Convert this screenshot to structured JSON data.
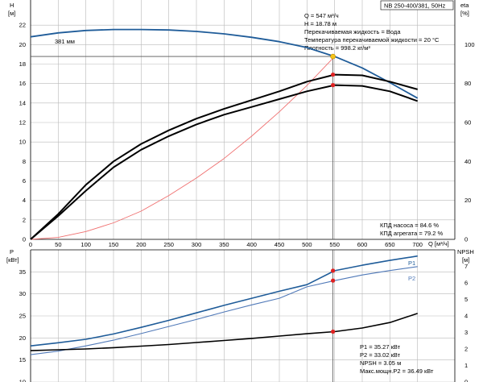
{
  "chart_data": [
    {
      "type": "line",
      "title_box": "NB 250-400/381, 50Hz",
      "x": {
        "unit": "Q [м³/ч]",
        "range": [
          0,
          750
        ],
        "ticks": [
          0,
          50,
          100,
          150,
          200,
          250,
          300,
          350,
          400,
          450,
          500,
          550,
          600,
          650,
          700
        ]
      },
      "y_left": {
        "label": "H",
        "unit": "[м]",
        "range": [
          0,
          24
        ],
        "ticks": [
          0,
          2,
          4,
          6,
          8,
          10,
          12,
          14,
          16,
          18,
          20,
          22
        ]
      },
      "y_right": {
        "label": "eta",
        "unit": "[%]",
        "range": [
          0,
          120
        ],
        "ticks": [
          0,
          20,
          40,
          60,
          80,
          100
        ]
      },
      "grid": true,
      "series": [
        {
          "name": "381 мм",
          "axis": "left",
          "color": "#1f5c99",
          "x": [
            0,
            50,
            100,
            150,
            200,
            250,
            300,
            350,
            400,
            450,
            500,
            550,
            600,
            650,
            700
          ],
          "y": [
            20.8,
            21.2,
            21.45,
            21.55,
            21.55,
            21.5,
            21.35,
            21.1,
            20.75,
            20.3,
            19.7,
            18.78,
            17.6,
            16.1,
            14.5
          ]
        },
        {
          "axis": "left",
          "color": "#f07070",
          "x": [
            0,
            50,
            100,
            150,
            200,
            250,
            300,
            350,
            400,
            450,
            500,
            550
          ],
          "y": [
            0,
            0.2,
            0.8,
            1.7,
            2.9,
            4.5,
            6.3,
            8.3,
            10.6,
            13.1,
            15.8,
            18.78
          ]
        },
        {
          "name": "КПД насоса",
          "axis": "right",
          "color": "#000000",
          "x": [
            0,
            50,
            100,
            150,
            200,
            250,
            300,
            350,
            400,
            450,
            500,
            550,
            600,
            650,
            700
          ],
          "y": [
            0,
            13,
            28,
            40,
            49,
            56,
            62,
            67,
            71.5,
            76,
            81,
            84.6,
            84.2,
            81,
            77
          ]
        },
        {
          "name": "КПД агрегата",
          "axis": "right",
          "color": "#000000",
          "x": [
            0,
            50,
            100,
            150,
            200,
            250,
            300,
            350,
            400,
            450,
            500,
            550,
            600,
            650,
            700
          ],
          "y": [
            0,
            12,
            25,
            37,
            46,
            53,
            59,
            64,
            68,
            72,
            76,
            79.2,
            78.8,
            76,
            71
          ]
        }
      ],
      "duty_point": {
        "x": 547,
        "H": 18.78,
        "eta_pump": 84.6,
        "eta_unit": 79.2
      },
      "annotations": {
        "top_lines": [
          "Q = 547 м³/ч",
          "H = 18.78 м",
          "Перекачиваемая жидкость = Вода",
          "Температура перекачиваемой жидкости = 20 °C",
          "Плотность = 998.2 кг/м³"
        ],
        "bottom_lines": [
          "КПД насоса = 84.6 %",
          "КПД агрегата = 79.2 %"
        ]
      }
    },
    {
      "type": "line",
      "x": {
        "range": [
          0,
          750
        ]
      },
      "y_left": {
        "label": "P",
        "unit": "[кВт]",
        "range": [
          10,
          40
        ],
        "ticks": [
          10,
          15,
          20,
          25,
          30,
          35
        ]
      },
      "y_right": {
        "label": "NPSH",
        "unit": "[м]",
        "range": [
          0,
          8
        ],
        "ticks": [
          0,
          1,
          2,
          3,
          4,
          5,
          6,
          7
        ]
      },
      "grid": true,
      "series": [
        {
          "name": "P1",
          "axis": "left",
          "color": "#1f5c99",
          "x": [
            0,
            50,
            100,
            150,
            200,
            250,
            300,
            350,
            400,
            450,
            500,
            550,
            600,
            650,
            700
          ],
          "y": [
            18.2,
            18.9,
            19.7,
            20.9,
            22.4,
            24.0,
            25.7,
            27.4,
            29.0,
            30.6,
            32.1,
            35.27,
            36.5,
            37.6,
            38.6
          ]
        },
        {
          "name": "P2",
          "axis": "left",
          "color": "#5079b8",
          "x": [
            0,
            50,
            100,
            150,
            200,
            250,
            300,
            350,
            400,
            450,
            500,
            550,
            600,
            650,
            700
          ],
          "y": [
            16.2,
            17.0,
            18.2,
            19.5,
            21.0,
            22.6,
            24.2,
            25.9,
            27.5,
            29.0,
            31.6,
            33.02,
            34.3,
            35.3,
            36.2
          ]
        },
        {
          "axis": "right",
          "color": "#000000",
          "x": [
            0,
            50,
            100,
            150,
            200,
            250,
            300,
            350,
            400,
            450,
            500,
            550,
            600,
            650,
            700
          ],
          "y": [
            1.9,
            1.95,
            2.0,
            2.08,
            2.17,
            2.27,
            2.39,
            2.51,
            2.64,
            2.78,
            2.92,
            3.05,
            3.27,
            3.6,
            4.15
          ]
        }
      ],
      "duty_point": {
        "x": 547,
        "P1": 35.27,
        "P2": 33.02,
        "NPSH": 3.05
      },
      "annotations": {
        "lines": [
          "P1 = 35.27 кВт",
          "P2 = 33.02 кВт",
          "NPSH = 3.05 м",
          "Макс.мощн.P2 = 36.49 кВт"
        ]
      }
    }
  ]
}
